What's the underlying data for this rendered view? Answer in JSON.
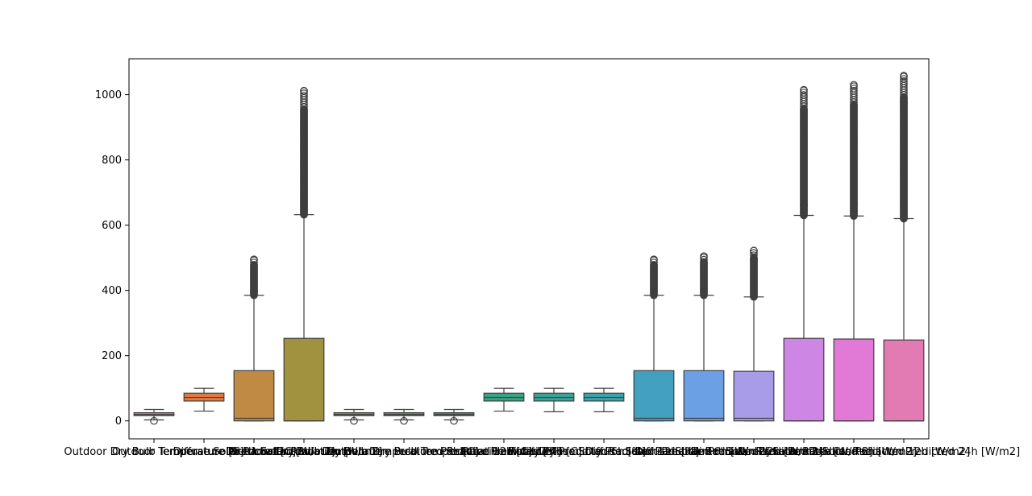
{
  "chart_data": {
    "type": "box",
    "title": "",
    "xlabel": "",
    "ylabel": "",
    "ylim": [
      -55,
      1110
    ],
    "yticks": [
      0,
      200,
      400,
      600,
      800,
      1000
    ],
    "grid": false,
    "legend": "none",
    "categories": [
      "Outdoor Dry Bulb Temperature [C]",
      "Outdoor Temperature Predicted [C]",
      "Diffuse Solar Radiation [W/m2]",
      "Direct Solar Radiation [W/m2]",
      "Outdoor Dry Bulb Temperature Predicted 6h [C]",
      "Outdoor Dry Bulb Temperature Predicted 12h [C]",
      "Outdoor Dry Bulb Temperature Predicted 24h [C]",
      "Relative Humidity [%]",
      "Relative Humidity Predicted 6h [%]",
      "Relative Humidity Predicted 12h [%]",
      "Diffuse Solar Radiation Predicted 6h [W/m2]",
      "Diffuse Solar Radiation Predicted 12h [W/m2]",
      "Diffuse Solar Radiation Predicted 24h [W/m2]",
      "Direct Solar Radiation Predicted 6h [W/m2]",
      "Direct Solar Radiation Predicted 12h [W/m2]",
      "Direct Solar Radiation Predicted 24h [W/m2]"
    ],
    "boxes": [
      {
        "min": 3,
        "q1": 16,
        "median": 20,
        "q3": 25,
        "max": 35,
        "fliers": [
          0
        ],
        "color": "#e8749a"
      },
      {
        "min": 30,
        "q1": 61,
        "median": 72,
        "q3": 85,
        "max": 100,
        "fliers": [],
        "color": "#e17a42"
      },
      {
        "min": 0,
        "q1": 0,
        "median": 8,
        "q3": 154,
        "max": 385,
        "flier_range": [
          385,
          495
        ],
        "color": "#c08a44"
      },
      {
        "min": 0,
        "q1": 0,
        "median": 0,
        "q3": 253,
        "max": 632,
        "flier_range": [
          632,
          1012
        ],
        "color": "#a0923e"
      },
      {
        "min": 3,
        "q1": 16,
        "median": 20,
        "q3": 25,
        "max": 35,
        "fliers": [
          0
        ],
        "color": "#8d9a3c"
      },
      {
        "min": 3,
        "q1": 16,
        "median": 20,
        "q3": 25,
        "max": 35,
        "fliers": [
          0
        ],
        "color": "#5ba14a"
      },
      {
        "min": 3,
        "q1": 16,
        "median": 20,
        "q3": 25,
        "max": 35,
        "fliers": [
          0
        ],
        "color": "#3a9f72"
      },
      {
        "min": 30,
        "q1": 61,
        "median": 72,
        "q3": 85,
        "max": 100,
        "fliers": [],
        "color": "#3aa284"
      },
      {
        "min": 28,
        "q1": 61,
        "median": 72,
        "q3": 85,
        "max": 100,
        "fliers": [],
        "color": "#3aa296"
      },
      {
        "min": 28,
        "q1": 61,
        "median": 72,
        "q3": 85,
        "max": 100,
        "fliers": [],
        "color": "#3da3a8"
      },
      {
        "min": 0,
        "q1": 0,
        "median": 8,
        "q3": 154,
        "max": 385,
        "flier_range": [
          385,
          495
        ],
        "color": "#43a0c0"
      },
      {
        "min": 0,
        "q1": 0,
        "median": 8,
        "q3": 154,
        "max": 385,
        "flier_range": [
          385,
          505
        ],
        "color": "#6ba0e4"
      },
      {
        "min": 0,
        "q1": 0,
        "median": 8,
        "q3": 152,
        "max": 380,
        "flier_range": [
          380,
          522
        ],
        "color": "#a89be8"
      },
      {
        "min": 0,
        "q1": 0,
        "median": 0,
        "q3": 253,
        "max": 630,
        "flier_range": [
          630,
          1015
        ],
        "color": "#cd86e3"
      },
      {
        "min": 0,
        "q1": 0,
        "median": 0,
        "q3": 251,
        "max": 628,
        "flier_range": [
          628,
          1030
        ],
        "color": "#e07ad6"
      },
      {
        "min": 0,
        "q1": 0,
        "median": 0,
        "q3": 248,
        "max": 620,
        "flier_range": [
          620,
          1058
        ],
        "color": "#e27ab4"
      }
    ]
  }
}
